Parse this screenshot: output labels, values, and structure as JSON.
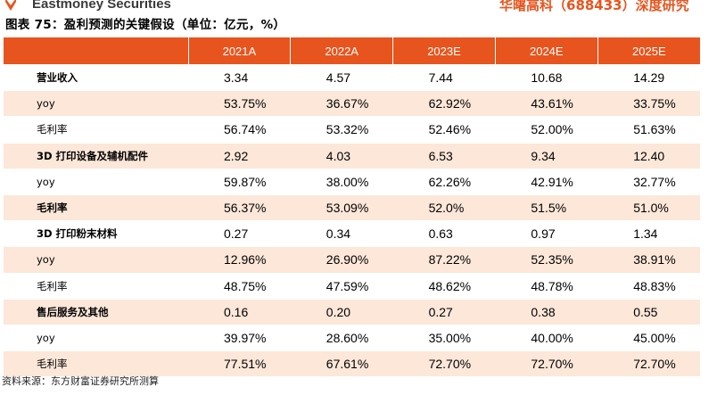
{
  "header": {
    "brand": "Eastmoney Securities",
    "report_title": "华曙高科（688433）深度研究"
  },
  "figure": {
    "title": "图表 75：盈利预测的关键假设（单位：亿元，%）"
  },
  "table": {
    "columns": [
      "",
      "2021A",
      "2022A",
      "2023E",
      "2024E",
      "2025E"
    ],
    "rows": [
      {
        "label": "营业收入",
        "bold": true,
        "shade": false,
        "values": [
          "3.34",
          "4.57",
          "7.44",
          "10.68",
          "14.29"
        ]
      },
      {
        "label": "yoy",
        "bold": false,
        "shade": true,
        "values": [
          "53.75%",
          "36.67%",
          "62.92%",
          "43.61%",
          "33.75%"
        ]
      },
      {
        "label": "毛利率",
        "bold": false,
        "shade": false,
        "values": [
          "56.74%",
          "53.32%",
          "52.46%",
          "52.00%",
          "51.63%"
        ]
      },
      {
        "label": "3D 打印设备及辅机配件",
        "bold": true,
        "shade": true,
        "values": [
          "2.92",
          "4.03",
          "6.53",
          "9.34",
          "12.40"
        ]
      },
      {
        "label": "yoy",
        "bold": false,
        "shade": false,
        "values": [
          "59.87%",
          "38.00%",
          "62.26%",
          "42.91%",
          "32.77%"
        ]
      },
      {
        "label": "毛利率",
        "bold": true,
        "shade": true,
        "values": [
          "56.37%",
          "53.09%",
          "52.0%",
          "51.5%",
          "51.0%"
        ]
      },
      {
        "label": "3D 打印粉末材料",
        "bold": true,
        "shade": false,
        "values": [
          "0.27",
          "0.34",
          "0.63",
          "0.97",
          "1.34"
        ]
      },
      {
        "label": "yoy",
        "bold": false,
        "shade": true,
        "values": [
          "12.96%",
          "26.90%",
          "87.22%",
          "52.35%",
          "38.91%"
        ]
      },
      {
        "label": "毛利率",
        "bold": false,
        "shade": false,
        "values": [
          "48.75%",
          "47.59%",
          "48.62%",
          "48.78%",
          "48.83%"
        ]
      },
      {
        "label": "售后服务及其他",
        "bold": true,
        "shade": true,
        "values": [
          "0.16",
          "0.20",
          "0.27",
          "0.38",
          "0.55"
        ]
      },
      {
        "label": "yoy",
        "bold": false,
        "shade": false,
        "values": [
          "39.97%",
          "28.60%",
          "35.00%",
          "40.00%",
          "45.00%"
        ]
      },
      {
        "label": "毛利率",
        "bold": false,
        "shade": true,
        "values": [
          "77.51%",
          "67.61%",
          "72.70%",
          "72.70%",
          "72.70%"
        ]
      }
    ]
  },
  "source": "资料来源：东方财富证券研究所测算",
  "colors": {
    "accent": "#e8541d",
    "shade": "#fce7d9"
  },
  "icons": {
    "logo": "eastmoney-logo-icon"
  }
}
